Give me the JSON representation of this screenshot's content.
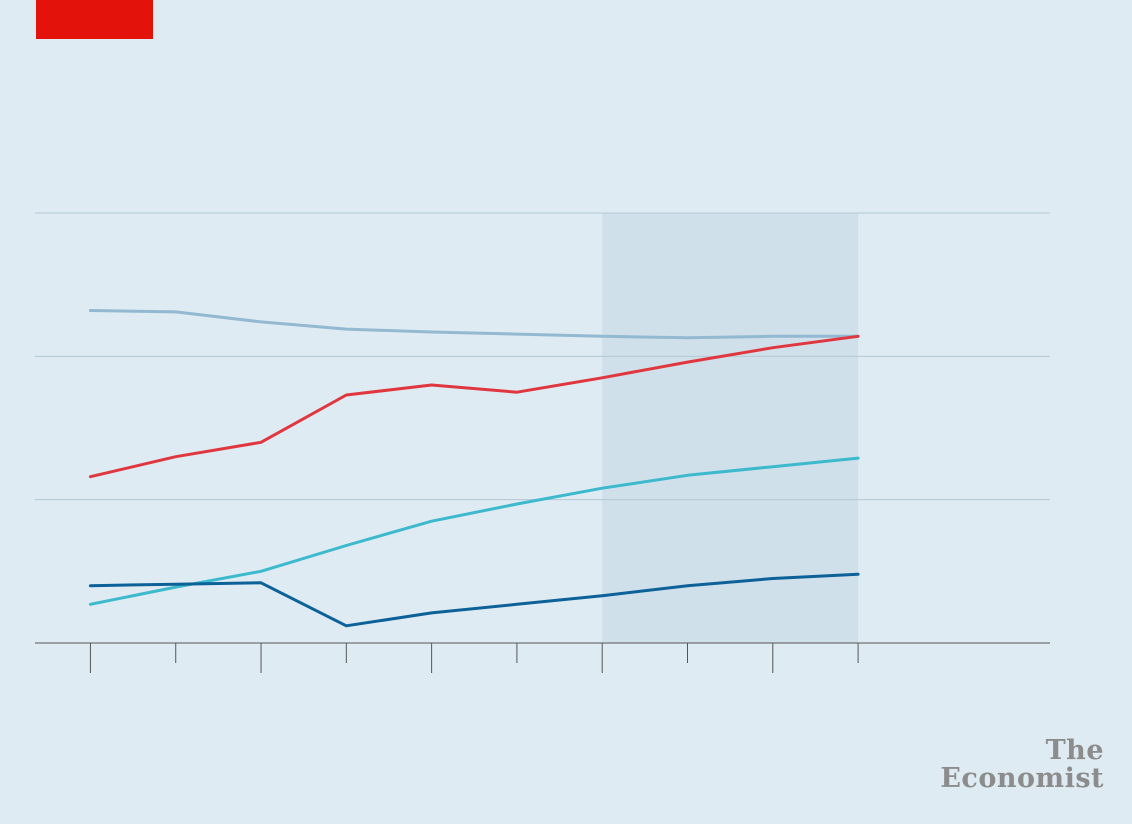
{
  "brand": {
    "logo_line1": "The",
    "logo_line2": "Economist",
    "tag_color": "#e3120b"
  },
  "chart_data": {
    "type": "line",
    "title": "",
    "xlabel": "",
    "ylabel": "",
    "x": [
      1,
      2,
      3,
      4,
      5,
      6,
      7,
      8,
      9,
      10
    ],
    "xlim": [
      0.35,
      12.25
    ],
    "ylim": [
      0,
      3
    ],
    "gridlines": [
      1,
      2,
      3
    ],
    "grid": true,
    "shaded_region": {
      "x_start": 7,
      "x_end": 10,
      "color": "#cfe0ea"
    },
    "series": [
      {
        "color": "#93b9d1",
        "values": [
          2.32,
          2.31,
          2.24,
          2.19,
          2.17,
          2.155,
          2.14,
          2.13,
          2.14,
          2.14
        ]
      },
      {
        "color": "#e0373f",
        "values": [
          1.16,
          1.3,
          1.4,
          1.73,
          1.8,
          1.75,
          1.85,
          1.96,
          2.06,
          2.14
        ]
      },
      {
        "color": "#3cb9cc",
        "values": [
          0.27,
          0.39,
          0.5,
          0.68,
          0.85,
          0.97,
          1.08,
          1.17,
          1.23,
          1.29
        ]
      },
      {
        "color": "#0d6199",
        "values": [
          0.4,
          0.41,
          0.42,
          0.12,
          0.21,
          0.27,
          0.33,
          0.4,
          0.45,
          0.48
        ]
      }
    ]
  }
}
